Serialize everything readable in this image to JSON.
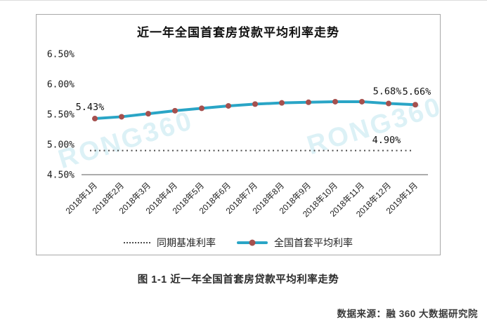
{
  "chart_data": {
    "type": "line",
    "title": "近一年全国首套房贷款平均利率走势",
    "categories": [
      "2018年1月",
      "2018年2月",
      "2018年3月",
      "2018年4月",
      "2018年5月",
      "2018年6月",
      "2018年7月",
      "2018年8月",
      "2018年9月",
      "2018年10月",
      "2018年11月",
      "2018年12月",
      "2019年1月"
    ],
    "series": [
      {
        "name": "同期基准利率",
        "style": "dotted",
        "values": [
          4.9,
          4.9,
          4.9,
          4.9,
          4.9,
          4.9,
          4.9,
          4.9,
          4.9,
          4.9,
          4.9,
          4.9,
          4.9
        ]
      },
      {
        "name": "全国首套平均利率",
        "style": "solid-markers",
        "values": [
          5.43,
          5.46,
          5.51,
          5.56,
          5.6,
          5.64,
          5.67,
          5.69,
          5.7,
          5.71,
          5.71,
          5.68,
          5.66
        ]
      }
    ],
    "point_labels": [
      {
        "index": 0,
        "label": "5.43%"
      },
      {
        "index": 11,
        "label": "5.68%"
      },
      {
        "index": 12,
        "label": "5.66%"
      }
    ],
    "benchmark_label": "4.90%",
    "y_ticks": [
      "6.50%",
      "6.00%",
      "5.50%",
      "5.00%",
      "4.50%"
    ],
    "ylim": [
      4.5,
      6.5
    ],
    "xlabel": "",
    "ylabel": "",
    "grid": false,
    "legend_position": "bottom"
  },
  "caption": "图 1-1 近一年全国首套房贷款平均利率走势",
  "source": "数据来源：融 360 大数据研究院",
  "watermark": "RONG360",
  "colors": {
    "line": "#2aa5c6",
    "marker": "#a5504e",
    "benchmark": "#4d4d4d",
    "axis": "#595959",
    "watermark": "#8ed2e4",
    "box_border": "#a8a8a8"
  }
}
